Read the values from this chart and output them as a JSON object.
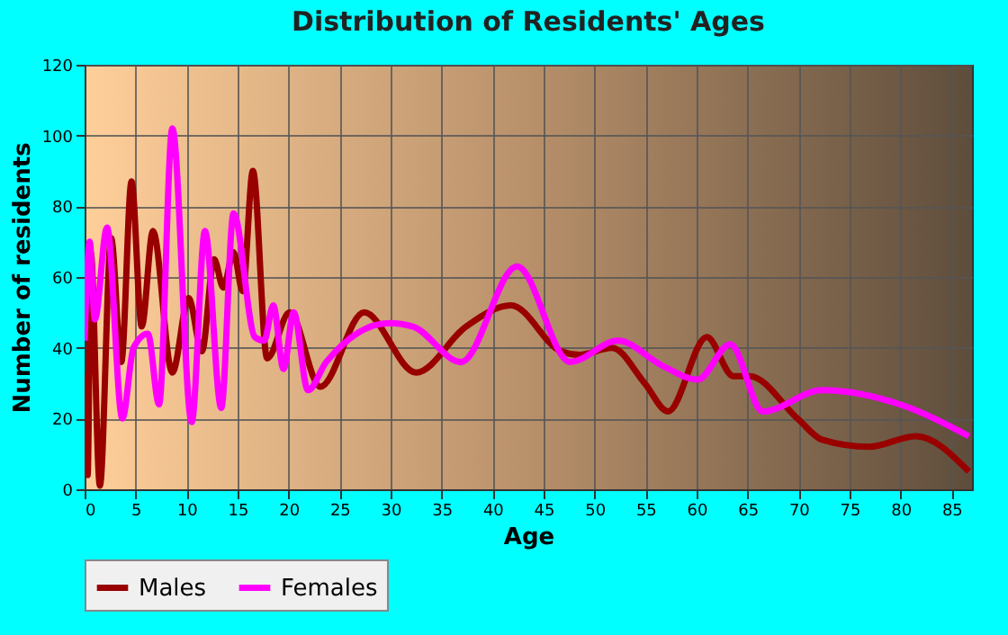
{
  "chart_data": {
    "type": "line",
    "title": "Distribution of Residents' Ages",
    "xlabel": "Age",
    "ylabel": "Number of residents",
    "xlim": [
      0,
      87
    ],
    "xticks": [
      0,
      5,
      10,
      15,
      20,
      25,
      30,
      35,
      40,
      45,
      50,
      55,
      60,
      65,
      70,
      75,
      80,
      85
    ],
    "ylim": [
      0,
      120
    ],
    "yticks": [
      0,
      20,
      40,
      60,
      80,
      100,
      120
    ],
    "grid": true,
    "legend": "bottom",
    "series": [
      {
        "name": "Males",
        "color": "#990000",
        "x": [
          0,
          0.3,
          0.6,
          1.5,
          2.6,
          3.6,
          4.6,
          5.6,
          6.7,
          8.6,
          10.2,
          11.5,
          12.7,
          13.6,
          14.6,
          15.5,
          16.5,
          17.9,
          20.1,
          23.1,
          27.4,
          32.5,
          37.4,
          41.8,
          46.7,
          48.5,
          51.7,
          54.9,
          57.2,
          61,
          63.6,
          65.2,
          69.9,
          72.3,
          76.9,
          81.5,
          86.7
        ],
        "values": [
          33,
          4,
          67,
          1,
          71,
          36,
          87,
          46,
          73,
          33,
          54,
          39,
          65,
          57,
          67,
          56,
          90,
          37,
          50,
          29,
          50,
          33,
          46,
          52,
          39,
          38,
          40,
          30,
          22,
          43,
          32,
          32,
          20,
          14,
          12,
          15,
          5
        ]
      },
      {
        "name": "Females",
        "color": "#ff00ff",
        "x": [
          0,
          0.5,
          1,
          2.2,
          3.7,
          4.8,
          6.2,
          7.3,
          8.6,
          10.5,
          11.8,
          13.4,
          14.6,
          16.7,
          17.6,
          18.5,
          19.5,
          20.5,
          21.9,
          23.7,
          29.9,
          32.2,
          36.9,
          42.4,
          47.6,
          52.3,
          56.6,
          60.1,
          63.3,
          66.5,
          72.3,
          80.9,
          86.7
        ],
        "values": [
          42,
          70,
          48,
          74,
          20,
          40,
          44,
          24,
          102,
          19,
          73,
          23,
          78,
          43,
          42,
          52,
          34,
          50,
          28,
          36,
          47,
          46,
          36,
          63,
          36,
          42,
          35,
          31,
          41,
          22,
          28,
          23,
          15
        ]
      }
    ]
  }
}
